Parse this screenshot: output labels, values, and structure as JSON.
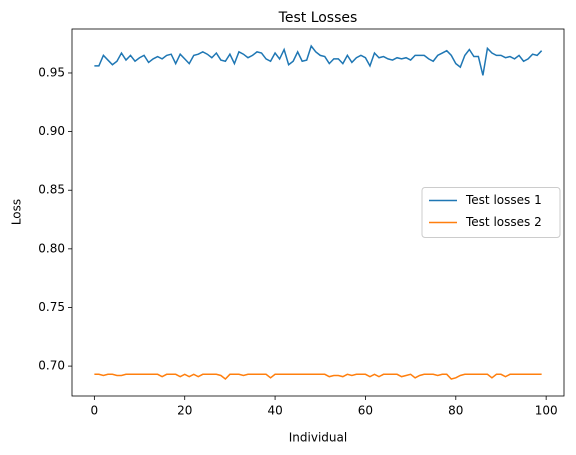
{
  "chart_data": {
    "type": "line",
    "title": "Test Losses",
    "x_label": "Individual",
    "y_label": "Loss",
    "x": [
      0,
      1,
      2,
      3,
      4,
      5,
      6,
      7,
      8,
      9,
      10,
      11,
      12,
      13,
      14,
      15,
      16,
      17,
      18,
      19,
      20,
      21,
      22,
      23,
      24,
      25,
      26,
      27,
      28,
      29,
      30,
      31,
      32,
      33,
      34,
      35,
      36,
      37,
      38,
      39,
      40,
      41,
      42,
      43,
      44,
      45,
      46,
      47,
      48,
      49,
      50,
      51,
      52,
      53,
      54,
      55,
      56,
      57,
      58,
      59,
      60,
      61,
      62,
      63,
      64,
      65,
      66,
      67,
      68,
      69,
      70,
      71,
      72,
      73,
      74,
      75,
      76,
      77,
      78,
      79,
      80,
      81,
      82,
      83,
      84,
      85,
      86,
      87,
      88,
      89,
      90,
      91,
      92,
      93,
      94,
      95,
      96,
      97,
      98,
      99
    ],
    "series": [
      {
        "name": "Test losses 1",
        "color": "#1f77b4",
        "values": [
          0.956,
          0.956,
          0.965,
          0.961,
          0.957,
          0.96,
          0.967,
          0.961,
          0.965,
          0.96,
          0.963,
          0.965,
          0.959,
          0.962,
          0.964,
          0.962,
          0.965,
          0.966,
          0.958,
          0.966,
          0.962,
          0.958,
          0.965,
          0.966,
          0.968,
          0.966,
          0.963,
          0.967,
          0.961,
          0.96,
          0.966,
          0.958,
          0.968,
          0.966,
          0.963,
          0.965,
          0.968,
          0.967,
          0.962,
          0.96,
          0.967,
          0.962,
          0.97,
          0.957,
          0.96,
          0.968,
          0.96,
          0.961,
          0.973,
          0.968,
          0.965,
          0.964,
          0.958,
          0.962,
          0.962,
          0.958,
          0.965,
          0.959,
          0.963,
          0.965,
          0.963,
          0.956,
          0.967,
          0.963,
          0.964,
          0.962,
          0.961,
          0.963,
          0.962,
          0.963,
          0.961,
          0.965,
          0.965,
          0.965,
          0.962,
          0.96,
          0.965,
          0.967,
          0.969,
          0.965,
          0.958,
          0.955,
          0.965,
          0.97,
          0.964,
          0.964,
          0.948,
          0.971,
          0.967,
          0.965,
          0.965,
          0.963,
          0.964,
          0.962,
          0.965,
          0.96,
          0.962,
          0.966,
          0.965,
          0.969
        ]
      },
      {
        "name": "Test losses 2",
        "color": "#ff7f0e",
        "values": [
          0.693,
          0.693,
          0.692,
          0.693,
          0.693,
          0.692,
          0.692,
          0.693,
          0.693,
          0.693,
          0.693,
          0.693,
          0.693,
          0.693,
          0.693,
          0.691,
          0.693,
          0.693,
          0.693,
          0.691,
          0.693,
          0.691,
          0.693,
          0.691,
          0.693,
          0.693,
          0.693,
          0.693,
          0.692,
          0.689,
          0.693,
          0.693,
          0.693,
          0.692,
          0.693,
          0.693,
          0.693,
          0.693,
          0.693,
          0.69,
          0.693,
          0.693,
          0.693,
          0.693,
          0.693,
          0.693,
          0.693,
          0.693,
          0.693,
          0.693,
          0.693,
          0.693,
          0.691,
          0.692,
          0.692,
          0.691,
          0.693,
          0.692,
          0.693,
          0.693,
          0.693,
          0.691,
          0.693,
          0.691,
          0.693,
          0.693,
          0.693,
          0.693,
          0.691,
          0.692,
          0.693,
          0.69,
          0.692,
          0.693,
          0.693,
          0.693,
          0.692,
          0.693,
          0.693,
          0.689,
          0.69,
          0.692,
          0.693,
          0.693,
          0.693,
          0.693,
          0.693,
          0.693,
          0.69,
          0.693,
          0.693,
          0.691,
          0.693,
          0.693,
          0.693,
          0.693,
          0.693,
          0.693,
          0.693,
          0.693
        ]
      }
    ],
    "xlim": [
      -4.95,
      103.95
    ],
    "xticks": [
      0,
      20,
      40,
      60,
      80,
      100
    ],
    "ylim": [
      0.6745,
      0.9875
    ],
    "yticks": [
      {
        "value": 0.7,
        "label": "0.70"
      },
      0.75,
      {
        "value": 0.8,
        "label": "0.80"
      },
      0.85,
      {
        "value": 0.9,
        "label": "0.90"
      },
      0.95
    ],
    "legend": "center right",
    "grid": false
  }
}
